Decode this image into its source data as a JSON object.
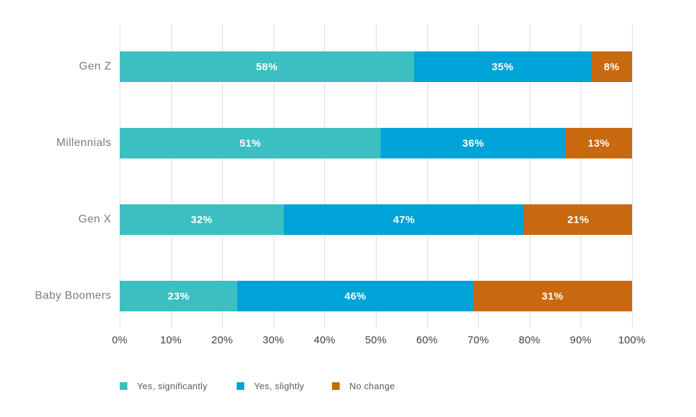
{
  "chart_data": {
    "type": "bar",
    "orientation": "horizontal",
    "stacked": true,
    "title": "",
    "categories": [
      "Gen Z",
      "Millennials",
      "Gen X",
      "Baby Boomers"
    ],
    "series": [
      {
        "name": "Yes, significantly",
        "color": "#3bbfc0",
        "values": [
          58,
          51,
          32,
          23
        ],
        "labels": [
          "58%",
          "51%",
          "32%",
          "23%"
        ]
      },
      {
        "name": "Yes, slightly",
        "color": "#00a3d7",
        "values": [
          35,
          36,
          47,
          46
        ],
        "labels": [
          "35%",
          "36%",
          "47%",
          "46%"
        ]
      },
      {
        "name": "No change",
        "color": "#c9690f",
        "values": [
          8,
          13,
          21,
          31
        ],
        "labels": [
          "8%",
          "13%",
          "21%",
          "31%"
        ]
      }
    ],
    "x_ticks": [
      "0%",
      "10%",
      "20%",
      "30%",
      "40%",
      "50%",
      "60%",
      "70%",
      "80%",
      "90%",
      "100%"
    ],
    "xlim": [
      0,
      100
    ],
    "grid": "vertical-gridlines-only",
    "legend_position": "bottom",
    "colors": {
      "gridline": "#dcdcdc",
      "bar_label": "#ffffff",
      "category_label": "#7c7c7c",
      "tick_label": "#3d3d3d",
      "legend_label": "#595959",
      "background": "#ffffff"
    }
  }
}
